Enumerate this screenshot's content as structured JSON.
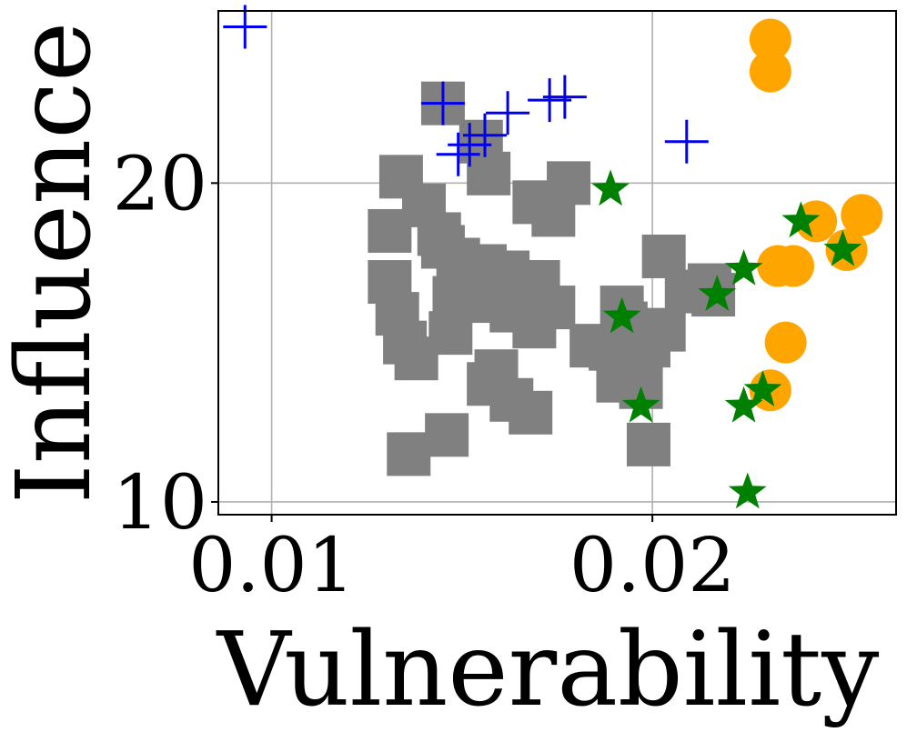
{
  "chart_data": {
    "type": "scatter",
    "title": "",
    "xlabel": "Vulnerability",
    "ylabel": "Influence",
    "xlim": [
      0.0086,
      0.0264
    ],
    "ylim": [
      9.6,
      25.4
    ],
    "xticks": [
      0.01,
      0.02
    ],
    "xtick_labels": [
      "0.01",
      "0.02"
    ],
    "yticks": [
      10,
      20
    ],
    "ytick_labels": [
      "10",
      "20"
    ],
    "grid": true,
    "legend": "none",
    "colors": {
      "gray_squares": "#808080",
      "blue_plus": "#0000ee",
      "green_star": "#008000",
      "orange_circle": "#ffa500"
    },
    "series": [
      {
        "marker": "square",
        "color": "#808080",
        "points": [
          {
            "x": 0.0145,
            "y": 22.5
          },
          {
            "x": 0.0155,
            "y": 21.3
          },
          {
            "x": 0.0157,
            "y": 20.3
          },
          {
            "x": 0.0134,
            "y": 20.2
          },
          {
            "x": 0.014,
            "y": 19.3
          },
          {
            "x": 0.0131,
            "y": 18.5
          },
          {
            "x": 0.0144,
            "y": 18.4
          },
          {
            "x": 0.0149,
            "y": 17.6
          },
          {
            "x": 0.0156,
            "y": 17.4
          },
          {
            "x": 0.0162,
            "y": 17.2
          },
          {
            "x": 0.0166,
            "y": 16.9
          },
          {
            "x": 0.017,
            "y": 16.9
          },
          {
            "x": 0.0178,
            "y": 20.0
          },
          {
            "x": 0.0169,
            "y": 19.4
          },
          {
            "x": 0.0174,
            "y": 19.0
          },
          {
            "x": 0.0145,
            "y": 18.0
          },
          {
            "x": 0.0131,
            "y": 16.9
          },
          {
            "x": 0.0133,
            "y": 15.9
          },
          {
            "x": 0.0135,
            "y": 15.0
          },
          {
            "x": 0.0138,
            "y": 14.5
          },
          {
            "x": 0.0148,
            "y": 16.4
          },
          {
            "x": 0.0153,
            "y": 16.4
          },
          {
            "x": 0.0158,
            "y": 16.3
          },
          {
            "x": 0.0163,
            "y": 16.0
          },
          {
            "x": 0.0169,
            "y": 15.5
          },
          {
            "x": 0.0174,
            "y": 16.1
          },
          {
            "x": 0.0147,
            "y": 15.3
          },
          {
            "x": 0.0159,
            "y": 14.1
          },
          {
            "x": 0.0157,
            "y": 13.7
          },
          {
            "x": 0.0163,
            "y": 13.2
          },
          {
            "x": 0.0168,
            "y": 12.8
          },
          {
            "x": 0.0146,
            "y": 12.1
          },
          {
            "x": 0.0136,
            "y": 11.5
          },
          {
            "x": 0.0184,
            "y": 14.9
          },
          {
            "x": 0.0189,
            "y": 14.8
          },
          {
            "x": 0.0193,
            "y": 15.6
          },
          {
            "x": 0.0195,
            "y": 14.3
          },
          {
            "x": 0.0199,
            "y": 14.9
          },
          {
            "x": 0.0203,
            "y": 15.4
          },
          {
            "x": 0.0191,
            "y": 13.8
          },
          {
            "x": 0.0197,
            "y": 13.6
          },
          {
            "x": 0.0199,
            "y": 11.8
          },
          {
            "x": 0.0203,
            "y": 17.7
          },
          {
            "x": 0.0209,
            "y": 16.6
          },
          {
            "x": 0.0215,
            "y": 16.8
          },
          {
            "x": 0.0216,
            "y": 16.5
          },
          {
            "x": 0.0192,
            "y": 16.1
          }
        ]
      },
      {
        "marker": "plus",
        "color": "#0000ee",
        "points": [
          {
            "x": 0.0093,
            "y": 24.9
          },
          {
            "x": 0.0145,
            "y": 22.5
          },
          {
            "x": 0.0149,
            "y": 20.9
          },
          {
            "x": 0.0152,
            "y": 21.2
          },
          {
            "x": 0.0156,
            "y": 21.5
          },
          {
            "x": 0.0162,
            "y": 22.2
          },
          {
            "x": 0.0173,
            "y": 22.6
          },
          {
            "x": 0.0177,
            "y": 22.7
          },
          {
            "x": 0.0209,
            "y": 21.3
          }
        ]
      },
      {
        "marker": "circle",
        "color": "#ffa500",
        "points": [
          {
            "x": 0.0231,
            "y": 24.5
          },
          {
            "x": 0.0231,
            "y": 23.5
          },
          {
            "x": 0.0243,
            "y": 18.8
          },
          {
            "x": 0.0255,
            "y": 19.0
          },
          {
            "x": 0.0251,
            "y": 17.9
          },
          {
            "x": 0.0233,
            "y": 17.4
          },
          {
            "x": 0.0237,
            "y": 17.4
          },
          {
            "x": 0.0235,
            "y": 15.0
          },
          {
            "x": 0.0231,
            "y": 13.5
          }
        ]
      },
      {
        "marker": "star",
        "color": "#008000",
        "points": [
          {
            "x": 0.0189,
            "y": 19.8
          },
          {
            "x": 0.0192,
            "y": 15.8
          },
          {
            "x": 0.0197,
            "y": 13.0
          },
          {
            "x": 0.0217,
            "y": 16.5
          },
          {
            "x": 0.0224,
            "y": 17.3
          },
          {
            "x": 0.0224,
            "y": 13.0
          },
          {
            "x": 0.0225,
            "y": 10.3
          },
          {
            "x": 0.0229,
            "y": 13.5
          },
          {
            "x": 0.0239,
            "y": 18.8
          },
          {
            "x": 0.025,
            "y": 17.9
          }
        ]
      }
    ]
  }
}
